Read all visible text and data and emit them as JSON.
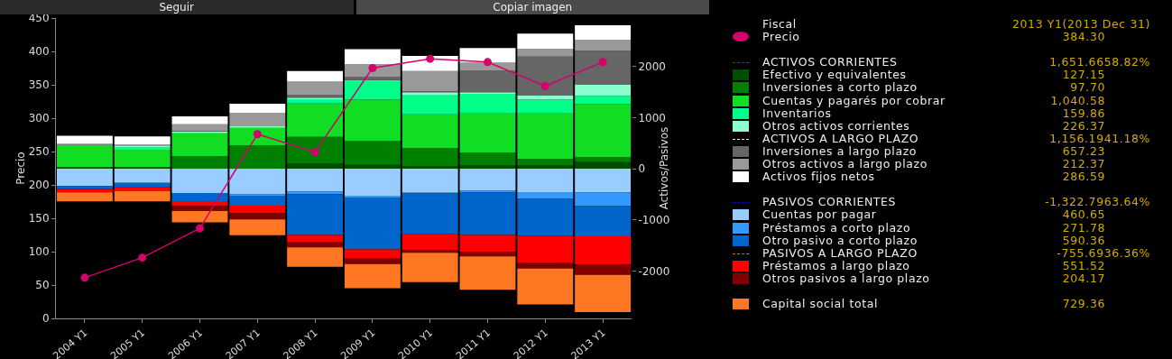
{
  "chart_data": {
    "type": "bar",
    "ylabel": "Precio",
    "y2label": "Activos/Pasivos",
    "categories": [
      "2004 Y1",
      "2005 Y1",
      "2006 Y1",
      "2007 Y1",
      "2008 Y1",
      "2009 Y1",
      "2010 Y1",
      "2011 Y1",
      "2012 Y1",
      "2013 Y1"
    ],
    "stacked": true,
    "legend": "right",
    "marker": "circle",
    "ylim": [
      0,
      450
    ],
    "yticks": [
      0,
      50,
      100,
      150,
      200,
      250,
      300,
      350,
      400,
      450
    ],
    "y2lim": [
      -2930,
      2950
    ],
    "y2ticks": [
      -2000,
      -1000,
      0,
      1000,
      2000
    ],
    "annotations": [
      "Seguir",
      "Copiar imagen",
      "Fiscal",
      "2013 Y1(2013 Dec 31)",
      "384.30",
      "ACTIVOS CORRIENTES",
      "1,651.6658.82%",
      "127.15",
      "97.70",
      "1,040.58",
      "159.86",
      "226.37",
      "ACTIVOS A LARGO PLAZO",
      "1,156.1941.18%",
      "657.23",
      "212.37",
      "286.59",
      "PASIVOS CORRIENTES",
      "-1,322.7963.64%",
      "460.65",
      "271.78",
      "590.36",
      "PASIVOS A LARGO PLAZO",
      "-755.6936.36%",
      "551.52",
      "204.17",
      "729.36"
    ],
    "series": [
      {
        "name": "Precio",
        "type": "line",
        "color": "#d4006e",
        "values": [
          61,
          91,
          135,
          276,
          249,
          375,
          389,
          384,
          348,
          384
        ]
      },
      {
        "name": "Efectivo y equivalentes",
        "axis": "y2",
        "color": "#004d00",
        "values": [
          30,
          30,
          null,
          null,
          107,
          77,
          47,
          65,
          65,
          127
        ]
      },
      {
        "name": "Inversiones a corto plazo",
        "axis": "y2",
        "color": "#008000",
        "values": [
          0,
          0,
          243,
          456,
          515,
          462,
          355,
          249,
          130,
          98
        ]
      },
      {
        "name": "Cuentas y pagarés por cobrar",
        "axis": "y2",
        "color": "#11dd22",
        "values": [
          430,
          343,
          450,
          343,
          657,
          811,
          663,
          781,
          900,
          1041
        ]
      },
      {
        "name": "Inventarios",
        "axis": "y2",
        "color": "#00ff88",
        "values": [
          0,
          53,
          0,
          0,
          83,
          367,
          373,
          373,
          255,
          160
        ]
      },
      {
        "name": "Otros activos corrientes",
        "axis": "y2",
        "color": "#88ffcc",
        "values": [
          10,
          30,
          30,
          30,
          30,
          18,
          59,
          30,
          89,
          226
        ]
      },
      {
        "name": "Inversiones a largo plazo",
        "axis": "y2",
        "color": "#666666",
        "values": [
          0,
          0,
          18,
          0,
          59,
          59,
          18,
          426,
          758,
          657
        ]
      },
      {
        "name": "Otros activos a largo plazo",
        "axis": "y2",
        "color": "#999999",
        "values": [
          15,
          24,
          130,
          266,
          255,
          255,
          397,
          154,
          148,
          212
        ]
      },
      {
        "name": "Activos fijos netos",
        "axis": "y2",
        "color": "#ffffff",
        "values": [
          160,
          154,
          154,
          178,
          207,
          290,
          296,
          284,
          302,
          287
        ]
      },
      {
        "name": "Cuentas por pagar",
        "axis": "y2",
        "color": "#99ccff",
        "values": [
          -337,
          -278,
          -474,
          -503,
          -444,
          -527,
          -456,
          -426,
          -456,
          -461
        ]
      },
      {
        "name": "Préstamos a corto plazo",
        "axis": "y2",
        "color": "#3399ff",
        "values": [
          0,
          0,
          0,
          -24,
          -53,
          -36,
          -30,
          -41,
          -130,
          -272
        ]
      },
      {
        "name": "Otro pasivo a corto plazo",
        "axis": "y2",
        "color": "#0066cc",
        "values": [
          -59,
          -89,
          -160,
          -195,
          -799,
          -1018,
          -799,
          -829,
          -728,
          -590
        ]
      },
      {
        "name": "Préstamos a largo plazo",
        "axis": "y2",
        "color": "#ff0000",
        "values": [
          -65,
          -71,
          -89,
          -148,
          -148,
          -178,
          -308,
          -326,
          -533,
          -552
        ]
      },
      {
        "name": "Otros pasivos a largo plazo",
        "axis": "y2",
        "color": "#800000",
        "values": [
          0,
          0,
          -107,
          -124,
          -95,
          -107,
          -53,
          -95,
          -107,
          -204
        ]
      },
      {
        "name": "Capital social total",
        "axis": "y2",
        "color": "#ff7722",
        "values": [
          -178,
          -201,
          -219,
          -308,
          -379,
          -474,
          -574,
          -651,
          -704,
          -729
        ]
      }
    ]
  }
}
